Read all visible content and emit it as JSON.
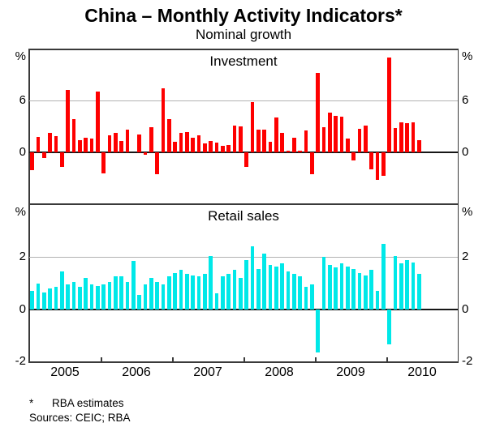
{
  "title": "China – Monthly Activity Indicators*",
  "subtitle": "Nominal growth",
  "footnote_marker": "*",
  "footnote_text": "RBA estimates",
  "sources": "Sources: CEIC; RBA",
  "colors": {
    "investment_bar": "#fe0000",
    "retail_bar": "#00e8e8",
    "gridline": "#b2b2b2",
    "zero_line": "#161616",
    "frame": "#3a3a3a",
    "background": "#ffffff"
  },
  "chart_data": {
    "type": "bar",
    "grid": "horizontal-only",
    "legend_position": "none",
    "x_axis_range": [
      "2005-01",
      "2011-01"
    ],
    "x_axis_years": [
      "2005",
      "2006",
      "2007",
      "2008",
      "2009",
      "2010"
    ],
    "months": [
      "2005-01",
      "2005-02",
      "2005-03",
      "2005-04",
      "2005-05",
      "2005-06",
      "2005-07",
      "2005-08",
      "2005-09",
      "2005-10",
      "2005-11",
      "2005-12",
      "2006-01",
      "2006-02",
      "2006-03",
      "2006-04",
      "2006-05",
      "2006-06",
      "2006-07",
      "2006-08",
      "2006-09",
      "2006-10",
      "2006-11",
      "2006-12",
      "2007-01",
      "2007-02",
      "2007-03",
      "2007-04",
      "2007-05",
      "2007-06",
      "2007-07",
      "2007-08",
      "2007-09",
      "2007-10",
      "2007-11",
      "2007-12",
      "2008-01",
      "2008-02",
      "2008-03",
      "2008-04",
      "2008-05",
      "2008-06",
      "2008-07",
      "2008-08",
      "2008-09",
      "2008-10",
      "2008-11",
      "2008-12",
      "2009-01",
      "2009-02",
      "2009-03",
      "2009-04",
      "2009-05",
      "2009-06",
      "2009-07",
      "2009-08",
      "2009-09",
      "2009-10",
      "2009-11",
      "2009-12",
      "2010-01",
      "2010-02",
      "2010-03",
      "2010-04",
      "2010-05",
      "2010-06"
    ],
    "panels": [
      {
        "title": "Investment",
        "unit": "%",
        "ylim": [
          -6,
          12
        ],
        "yticks": [
          6,
          0
        ],
        "gridlines": [
          6
        ],
        "bar_color": "#fe0000",
        "values": [
          -2.1,
          1.8,
          -0.7,
          2.2,
          1.9,
          -1.7,
          7.3,
          3.9,
          1.4,
          1.7,
          1.6,
          7.1,
          -2.5,
          2.0,
          2.2,
          1.3,
          2.6,
          0.0,
          2.1,
          -0.3,
          2.9,
          -2.6,
          7.5,
          3.9,
          1.2,
          2.2,
          2.3,
          1.7,
          2.0,
          1.0,
          1.3,
          1.1,
          0.7,
          0.8,
          3.1,
          3.0,
          -1.7,
          5.8,
          2.6,
          2.6,
          1.2,
          4.0,
          2.2,
          0.2,
          1.7,
          0.2,
          2.5,
          -2.6,
          9.3,
          2.9,
          4.6,
          4.2,
          4.1,
          1.6,
          -1.0,
          2.7,
          3.1,
          -2.0,
          -3.3,
          -2.8,
          11.1,
          2.8,
          3.5,
          3.4,
          3.5,
          1.4
        ]
      },
      {
        "title": "Retail sales",
        "unit": "%",
        "ylim": [
          -2,
          4
        ],
        "yticks": [
          2,
          0,
          -2
        ],
        "gridlines": [
          2
        ],
        "bar_color": "#00e8e8",
        "values": [
          0.7,
          1.0,
          0.65,
          0.8,
          0.85,
          1.45,
          0.95,
          1.05,
          0.85,
          1.2,
          0.95,
          0.9,
          0.95,
          1.05,
          1.25,
          1.25,
          1.05,
          1.85,
          0.55,
          0.95,
          1.2,
          1.05,
          0.95,
          1.25,
          1.4,
          1.5,
          1.35,
          1.3,
          1.25,
          1.35,
          2.05,
          0.6,
          1.25,
          1.35,
          1.5,
          1.2,
          1.9,
          2.4,
          1.55,
          2.15,
          1.7,
          1.65,
          1.75,
          1.45,
          1.35,
          1.25,
          0.85,
          0.95,
          -1.65,
          2.0,
          1.7,
          1.6,
          1.75,
          1.65,
          1.55,
          1.4,
          1.3,
          1.5,
          0.7,
          2.5,
          -1.35,
          2.05,
          1.75,
          1.9,
          1.8,
          1.35
        ]
      }
    ]
  }
}
